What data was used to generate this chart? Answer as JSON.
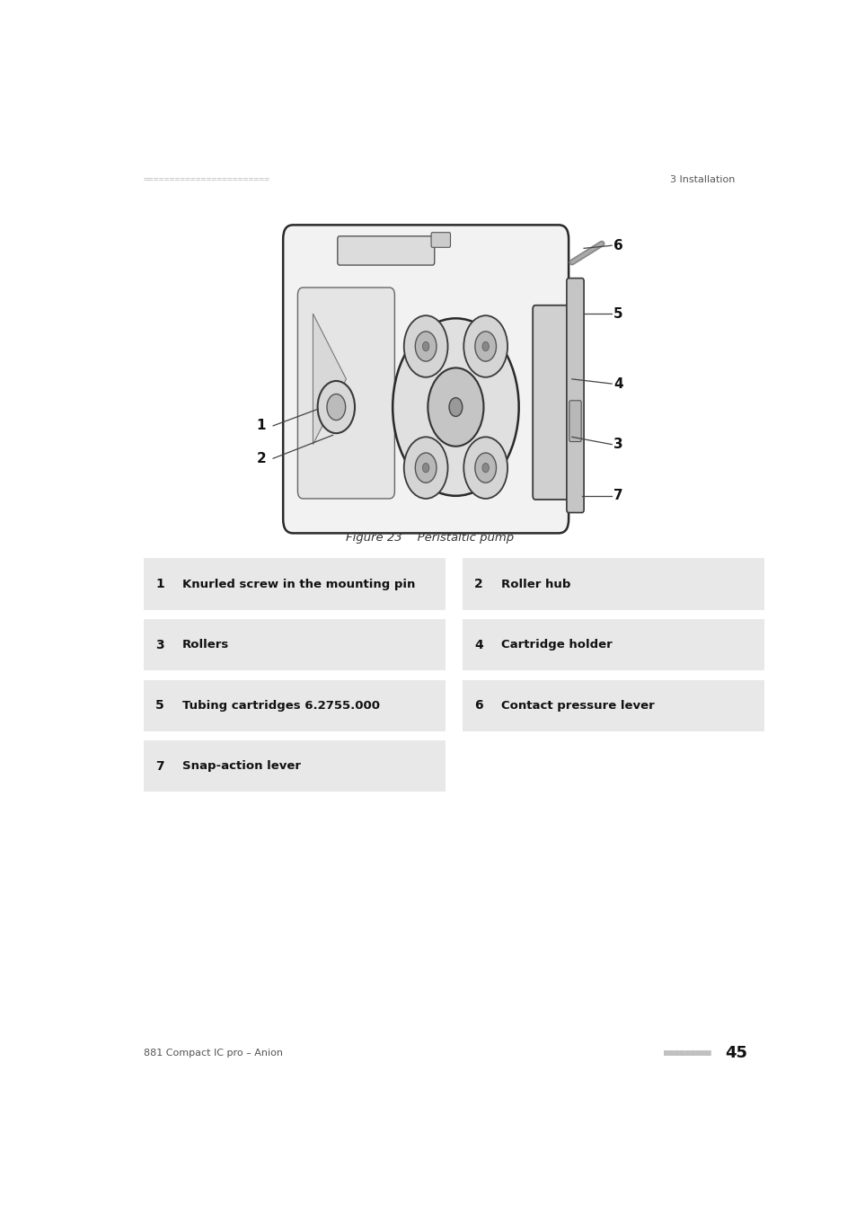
{
  "page_width": 9.54,
  "page_height": 13.5,
  "background_color": "#ffffff",
  "header_left_text": "========================",
  "header_right_text": "3 Installation",
  "header_color": "#c0c0c0",
  "header_text_color": "#555555",
  "figure_caption": "Figure 23    Peristaltic pump",
  "footer_left_text": "881 Compact IC pro – Anion",
  "footer_right_text": "45",
  "footer_dots": "■■■■■■■■■",
  "table_bg_color": "#e8e8e8",
  "table_items": [
    {
      "num": "1",
      "text": "Knurled screw in the mounting pin",
      "col": 0,
      "row": 0
    },
    {
      "num": "2",
      "text": "Roller hub",
      "col": 1,
      "row": 0
    },
    {
      "num": "3",
      "text": "Rollers",
      "col": 0,
      "row": 1
    },
    {
      "num": "4",
      "text": "Cartridge holder",
      "col": 1,
      "row": 1
    },
    {
      "num": "5",
      "text": "Tubing cartridges 6.2755.000",
      "col": 0,
      "row": 2
    },
    {
      "num": "6",
      "text": "Contact pressure lever",
      "col": 1,
      "row": 2
    },
    {
      "num": "7",
      "text": "Snap-action lever",
      "col": 0,
      "row": 3
    }
  ]
}
